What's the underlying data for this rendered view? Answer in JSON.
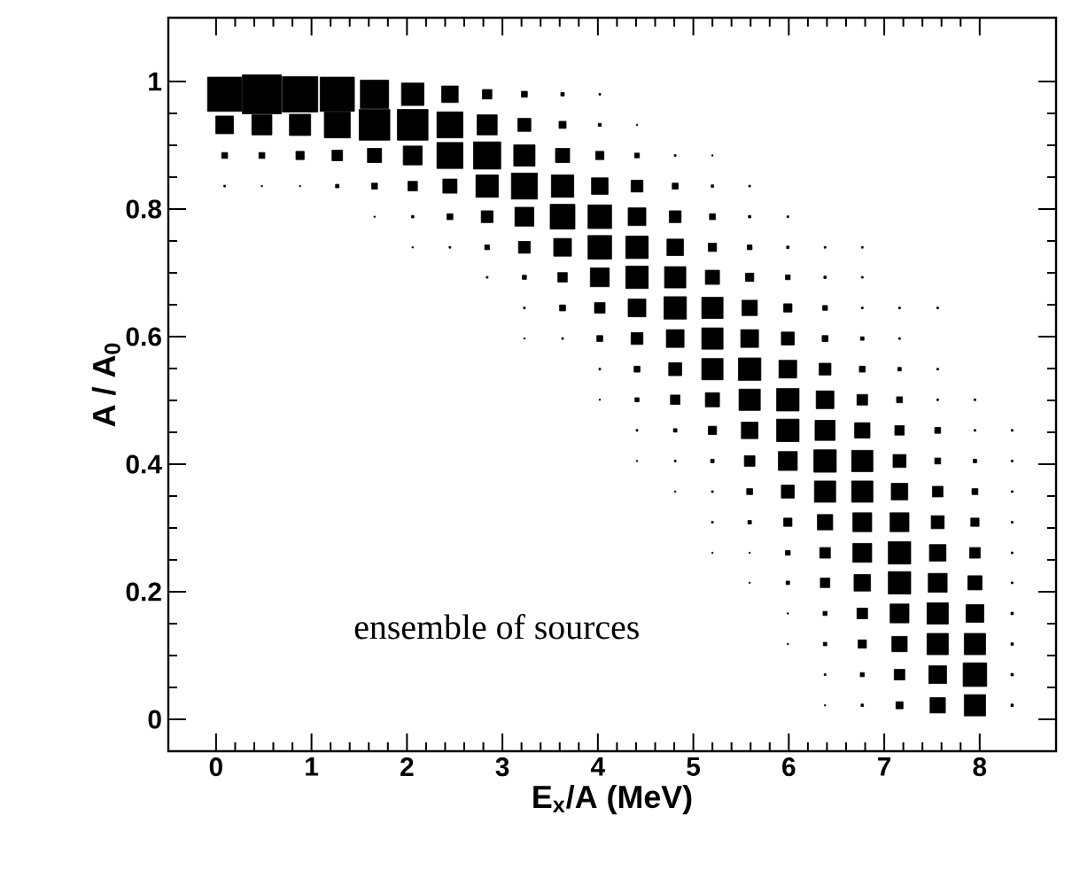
{
  "chart_data": {
    "type": "bubble",
    "xlabel": "E$_{x}$/A (MeV)",
    "ylabel": "A / A$_{0}$",
    "annotations": [
      "ensemble of sources"
    ],
    "marker": "square",
    "xlim": [
      -0.5,
      8.8
    ],
    "xticks": [
      0,
      1,
      2,
      3,
      4,
      5,
      6,
      7,
      8
    ],
    "ylim": [
      -0.05,
      1.1
    ],
    "yticks": [
      0,
      0.2,
      0.4,
      0.6,
      0.8,
      1
    ],
    "series": [
      {
        "color": "#000000",
        "x": [
          0.09,
          0.48,
          0.88,
          1.27,
          1.66,
          2.06,
          2.45,
          2.84,
          3.23,
          3.63,
          4.02
        ],
        "values": [
          0.98,
          0.98,
          0.98,
          0.98,
          0.98,
          0.98,
          0.98,
          0.98,
          0.98,
          0.98,
          0.98
        ],
        "sizes": [
          0.772,
          1,
          0.826,
          0.772,
          0.529,
          0.331,
          0.18,
          0.059,
          0.023,
          0.008,
          0.002
        ]
      },
      {
        "color": "#000000",
        "x": [
          0.09,
          0.48,
          0.88,
          1.27,
          1.66,
          2.06,
          2.45,
          2.84,
          3.23,
          3.63,
          4.02,
          4.41
        ],
        "values": [
          0.932,
          0.932,
          0.932,
          0.932,
          0.932,
          0.932,
          0.932,
          0.932,
          0.932,
          0.932,
          0.932,
          0.932
        ],
        "sizes": [
          0.207,
          0.265,
          0.298,
          0.444,
          0.621,
          0.621,
          0.444,
          0.265,
          0.111,
          0.033,
          0.006,
          0.001
        ]
      },
      {
        "color": "#000000",
        "x": [
          0.09,
          0.48,
          0.88,
          1.27,
          1.66,
          2.06,
          2.45,
          2.84,
          3.23,
          3.63,
          4.02,
          4.41,
          4.81,
          5.2
        ],
        "values": [
          0.884,
          0.884,
          0.884,
          0.884,
          0.884,
          0.884,
          0.884,
          0.884,
          0.884,
          0.884,
          0.884,
          0.884,
          0.884,
          0.884
        ],
        "sizes": [
          0.023,
          0.023,
          0.045,
          0.074,
          0.132,
          0.235,
          0.444,
          0.486,
          0.298,
          0.132,
          0.045,
          0.015,
          0.002,
          0.001
        ]
      },
      {
        "color": "#000000",
        "x": [
          0.09,
          0.48,
          0.88,
          1.27,
          1.66,
          2.06,
          2.45,
          2.84,
          3.23,
          3.63,
          4.02,
          4.41,
          4.81,
          5.2,
          5.59
        ],
        "values": [
          0.836,
          0.836,
          0.836,
          0.836,
          0.836,
          0.836,
          0.836,
          0.836,
          0.836,
          0.836,
          0.836,
          0.836,
          0.836,
          0.836,
          0.836
        ],
        "sizes": [
          0.002,
          0.001,
          0.001,
          0.008,
          0.023,
          0.059,
          0.132,
          0.331,
          0.444,
          0.331,
          0.18,
          0.092,
          0.023,
          0.004,
          0.002
        ]
      },
      {
        "color": "#000000",
        "x": [
          1.66,
          2.06,
          2.45,
          2.84,
          3.23,
          3.63,
          4.02,
          4.41,
          4.81,
          5.2,
          5.59,
          5.99
        ],
        "values": [
          0.788,
          0.788,
          0.788,
          0.788,
          0.788,
          0.788,
          0.788,
          0.788,
          0.788,
          0.788,
          0.788,
          0.788
        ],
        "sizes": [
          0.001,
          0.004,
          0.023,
          0.092,
          0.235,
          0.405,
          0.367,
          0.207,
          0.092,
          0.023,
          0.004,
          0.002
        ]
      },
      {
        "color": "#000000",
        "x": [
          2.06,
          2.45,
          2.84,
          3.23,
          3.63,
          4.02,
          4.41,
          4.81,
          5.2,
          5.59,
          5.99,
          6.38,
          6.77
        ],
        "values": [
          0.74,
          0.74,
          0.74,
          0.74,
          0.74,
          0.74,
          0.74,
          0.74,
          0.74,
          0.74,
          0.74,
          0.74,
          0.74
        ],
        "sizes": [
          0.001,
          0.002,
          0.015,
          0.092,
          0.207,
          0.367,
          0.331,
          0.18,
          0.045,
          0.015,
          0.004,
          0.002,
          0.002
        ]
      },
      {
        "color": "#000000",
        "x": [
          2.84,
          3.23,
          3.63,
          4.02,
          4.41,
          4.81,
          5.2,
          5.59,
          5.99,
          6.38,
          6.77
        ],
        "values": [
          0.693,
          0.693,
          0.693,
          0.693,
          0.693,
          0.693,
          0.693,
          0.693,
          0.693,
          0.693,
          0.693
        ],
        "sizes": [
          0.002,
          0.011,
          0.059,
          0.235,
          0.331,
          0.298,
          0.132,
          0.045,
          0.015,
          0.004,
          0.002
        ]
      },
      {
        "color": "#000000",
        "x": [
          3.23,
          3.63,
          4.02,
          4.41,
          4.81,
          5.2,
          5.59,
          5.99,
          6.38,
          6.77,
          7.16,
          7.56
        ],
        "values": [
          0.645,
          0.645,
          0.645,
          0.645,
          0.645,
          0.645,
          0.645,
          0.645,
          0.645,
          0.645,
          0.645,
          0.645
        ],
        "sizes": [
          0.002,
          0.023,
          0.074,
          0.207,
          0.331,
          0.298,
          0.155,
          0.045,
          0.015,
          0.002,
          0.002,
          0.002
        ]
      },
      {
        "color": "#000000",
        "x": [
          3.23,
          3.63,
          4.02,
          4.41,
          4.81,
          5.2,
          5.59,
          5.99,
          6.38,
          6.77,
          7.16
        ],
        "values": [
          0.597,
          0.597,
          0.597,
          0.597,
          0.597,
          0.597,
          0.597,
          0.597,
          0.597,
          0.597,
          0.597
        ],
        "sizes": [
          0.001,
          0.002,
          0.023,
          0.092,
          0.207,
          0.298,
          0.207,
          0.111,
          0.023,
          0.008,
          0.002
        ]
      },
      {
        "color": "#000000",
        "x": [
          4.02,
          4.41,
          4.81,
          5.2,
          5.59,
          5.99,
          6.38,
          6.77,
          7.16,
          7.56
        ],
        "values": [
          0.549,
          0.549,
          0.549,
          0.549,
          0.549,
          0.549,
          0.549,
          0.549,
          0.549,
          0.549
        ],
        "sizes": [
          0.002,
          0.023,
          0.111,
          0.298,
          0.331,
          0.207,
          0.092,
          0.023,
          0.008,
          0.002
        ]
      },
      {
        "color": "#000000",
        "x": [
          4.02,
          4.41,
          4.81,
          5.2,
          5.59,
          5.99,
          6.38,
          6.77,
          7.16,
          7.56,
          7.95
        ],
        "values": [
          0.501,
          0.501,
          0.501,
          0.501,
          0.501,
          0.501,
          0.501,
          0.501,
          0.501,
          0.501,
          0.501
        ],
        "sizes": [
          0.001,
          0.011,
          0.059,
          0.132,
          0.298,
          0.331,
          0.207,
          0.074,
          0.023,
          0.002,
          0.002
        ]
      },
      {
        "color": "#000000",
        "x": [
          4.41,
          4.81,
          5.2,
          5.59,
          5.99,
          6.38,
          6.77,
          7.16,
          7.56,
          7.95,
          8.34
        ],
        "values": [
          0.453,
          0.453,
          0.453,
          0.453,
          0.453,
          0.453,
          0.453,
          0.453,
          0.453,
          0.453,
          0.453
        ],
        "sizes": [
          0.002,
          0.008,
          0.045,
          0.18,
          0.331,
          0.265,
          0.155,
          0.059,
          0.023,
          0.002,
          0.002
        ]
      },
      {
        "color": "#000000",
        "x": [
          4.41,
          4.81,
          5.2,
          5.59,
          5.99,
          6.38,
          6.77,
          7.16,
          7.56,
          7.95,
          8.34
        ],
        "values": [
          0.405,
          0.405,
          0.405,
          0.405,
          0.405,
          0.405,
          0.405,
          0.405,
          0.405,
          0.405,
          0.405
        ],
        "sizes": [
          0.001,
          0.002,
          0.008,
          0.074,
          0.235,
          0.331,
          0.298,
          0.111,
          0.023,
          0.008,
          0.002
        ]
      },
      {
        "color": "#000000",
        "x": [
          4.81,
          5.2,
          5.59,
          5.99,
          6.38,
          6.77,
          7.16,
          7.56,
          7.95,
          8.34
        ],
        "values": [
          0.357,
          0.357,
          0.357,
          0.357,
          0.357,
          0.357,
          0.357,
          0.357,
          0.357,
          0.357
        ],
        "sizes": [
          0.001,
          0.002,
          0.023,
          0.111,
          0.298,
          0.298,
          0.18,
          0.074,
          0.023,
          0.002
        ]
      },
      {
        "color": "#000000",
        "x": [
          5.2,
          5.59,
          5.99,
          6.38,
          6.77,
          7.16,
          7.56,
          7.95,
          8.34
        ],
        "values": [
          0.309,
          0.309,
          0.309,
          0.309,
          0.309,
          0.309,
          0.309,
          0.309,
          0.309
        ],
        "sizes": [
          0.002,
          0.008,
          0.045,
          0.155,
          0.235,
          0.235,
          0.111,
          0.045,
          0.002
        ]
      },
      {
        "color": "#000000",
        "x": [
          5.2,
          5.59,
          5.99,
          6.38,
          6.77,
          7.16,
          7.56,
          7.95,
          8.34
        ],
        "values": [
          0.261,
          0.261,
          0.261,
          0.261,
          0.261,
          0.261,
          0.261,
          0.261,
          0.261
        ],
        "sizes": [
          0.001,
          0.001,
          0.015,
          0.074,
          0.235,
          0.331,
          0.18,
          0.074,
          0.002
        ]
      },
      {
        "color": "#000000",
        "x": [
          5.59,
          5.99,
          6.38,
          6.77,
          7.16,
          7.56,
          7.95,
          8.34
        ],
        "values": [
          0.214,
          0.214,
          0.214,
          0.214,
          0.214,
          0.214,
          0.214,
          0.214
        ],
        "sizes": [
          0.001,
          0.008,
          0.059,
          0.18,
          0.331,
          0.235,
          0.132,
          0.002
        ]
      },
      {
        "color": "#000000",
        "x": [
          5.99,
          6.38,
          6.77,
          7.16,
          7.56,
          7.95,
          8.34
        ],
        "values": [
          0.166,
          0.166,
          0.166,
          0.166,
          0.166,
          0.166,
          0.166
        ],
        "sizes": [
          0.001,
          0.011,
          0.074,
          0.235,
          0.298,
          0.207,
          0.004
        ]
      },
      {
        "color": "#000000",
        "x": [
          5.99,
          6.38,
          6.77,
          7.16,
          7.56,
          7.95,
          8.34
        ],
        "values": [
          0.118,
          0.118,
          0.118,
          0.118,
          0.118,
          0.118,
          0.118
        ],
        "sizes": [
          0.001,
          0.008,
          0.045,
          0.155,
          0.298,
          0.298,
          0.004
        ]
      },
      {
        "color": "#000000",
        "x": [
          6.38,
          6.77,
          7.16,
          7.56,
          7.95,
          8.34
        ],
        "values": [
          0.07,
          0.07,
          0.07,
          0.07,
          0.07,
          0.07
        ],
        "sizes": [
          0.002,
          0.011,
          0.074,
          0.207,
          0.367,
          0.004
        ]
      },
      {
        "color": "#000000",
        "x": [
          6.38,
          6.77,
          7.16,
          7.56,
          7.95,
          8.34
        ],
        "values": [
          0.022,
          0.022,
          0.022,
          0.022,
          0.022,
          0.022
        ],
        "sizes": [
          0.001,
          0.004,
          0.033,
          0.155,
          0.298,
          0.004
        ]
      }
    ]
  }
}
